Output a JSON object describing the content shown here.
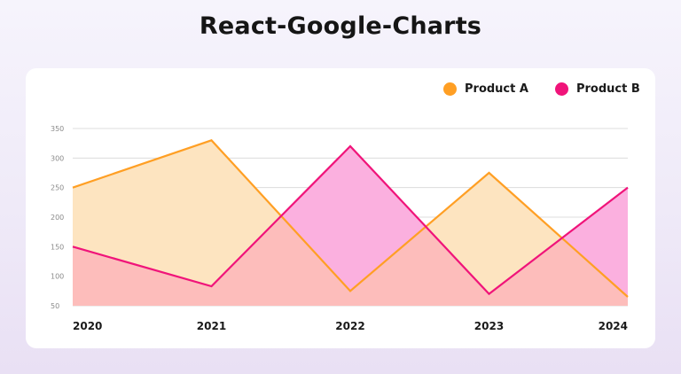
{
  "chart_data": {
    "type": "area",
    "title": "React-Google-Charts",
    "xlabel": "",
    "ylabel": "",
    "categories": [
      "2020",
      "2021",
      "2022",
      "2023",
      "2024"
    ],
    "y_ticks": [
      50,
      100,
      150,
      200,
      250,
      300,
      350
    ],
    "ylim": [
      50,
      350
    ],
    "grid": true,
    "legend_position": "top-right",
    "series": [
      {
        "name": "Product A",
        "values": [
          250,
          330,
          75,
          275,
          65
        ],
        "color": "#ff9f24",
        "fill": "#fde4c0"
      },
      {
        "name": "Product B",
        "values": [
          150,
          83,
          320,
          70,
          250
        ],
        "color": "#f0147a",
        "fill": "#fbb0df"
      }
    ],
    "overlap_fill": "#fdbdbb"
  }
}
